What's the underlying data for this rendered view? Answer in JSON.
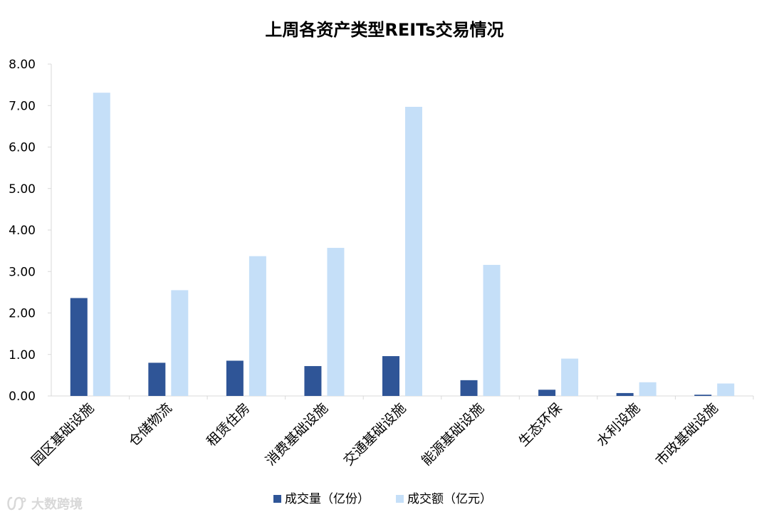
{
  "chart_data": {
    "type": "bar",
    "title": "上周各资产类型REITs交易情况",
    "categories": [
      "园区基础设施",
      "仓储物流",
      "租赁住房",
      "消费基础设施",
      "交通基础设施",
      "能源基础设施",
      "生态环保",
      "水利设施",
      "市政基础设施"
    ],
    "series": [
      {
        "name": "成交量（亿份）",
        "color": "#2F5597",
        "values": [
          2.36,
          0.8,
          0.85,
          0.72,
          0.96,
          0.38,
          0.15,
          0.07,
          0.03
        ]
      },
      {
        "name": "成交额（亿元）",
        "color": "#C5DFF8",
        "values": [
          7.31,
          2.55,
          3.37,
          3.57,
          6.97,
          3.16,
          0.9,
          0.33,
          0.3
        ]
      }
    ],
    "ylim": [
      0,
      8
    ],
    "yticks": [
      "0.00",
      "1.00",
      "2.00",
      "3.00",
      "4.00",
      "5.00",
      "6.00",
      "7.00",
      "8.00"
    ],
    "xlabel": "",
    "ylabel": "",
    "grid": false,
    "legend_position": "bottom"
  },
  "watermark": {
    "text": "大数跨境",
    "icon": "logo-icon"
  }
}
